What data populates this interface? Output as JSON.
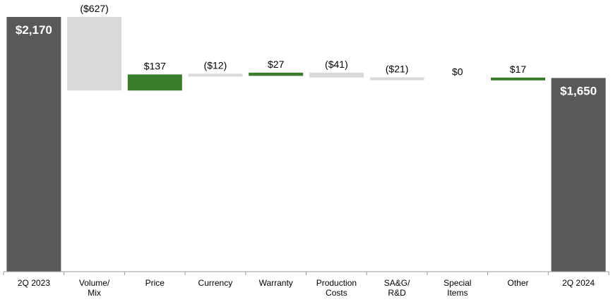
{
  "chart_data": {
    "type": "waterfall",
    "title": "",
    "xlabel": "",
    "ylabel": "",
    "ylim": [
      0,
      2400
    ],
    "grid": false,
    "legend": "none",
    "colors": {
      "total": "#595959",
      "increase": "#3a7d2c",
      "decrease": "#d9d9d9"
    },
    "bars": [
      {
        "category": [
          "2Q 2023"
        ],
        "value": 2170,
        "label": "$2,170",
        "kind": "total"
      },
      {
        "category": [
          "Volume/",
          "Mix"
        ],
        "value": -627,
        "label": "($627)",
        "kind": "decrease"
      },
      {
        "category": [
          "Price"
        ],
        "value": 137,
        "label": "$137",
        "kind": "increase"
      },
      {
        "category": [
          "Currency"
        ],
        "value": -12,
        "label": "($12)",
        "kind": "decrease"
      },
      {
        "category": [
          "Warranty"
        ],
        "value": 27,
        "label": "$27",
        "kind": "increase"
      },
      {
        "category": [
          "Production",
          "Costs"
        ],
        "value": -41,
        "label": "($41)",
        "kind": "decrease"
      },
      {
        "category": [
          "SA&G/",
          "R&D"
        ],
        "value": -21,
        "label": "($21)",
        "kind": "decrease"
      },
      {
        "category": [
          "Special",
          "Items"
        ],
        "value": 0,
        "label": "$0",
        "kind": "increase"
      },
      {
        "category": [
          "Other"
        ],
        "value": 17,
        "label": "$17",
        "kind": "increase"
      },
      {
        "category": [
          "2Q 2024"
        ],
        "value": 1650,
        "label": "$1,650",
        "kind": "total"
      }
    ]
  }
}
